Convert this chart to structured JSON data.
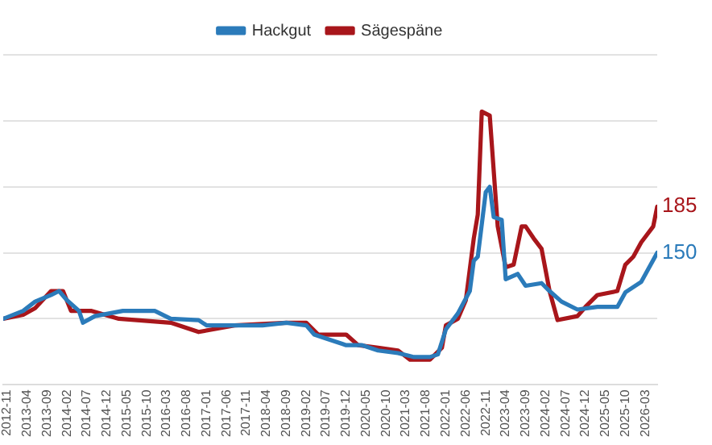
{
  "chart_data": {
    "type": "line",
    "xlim": [
      "2012-10",
      "2026-06"
    ],
    "xticks": [
      "2012-11",
      "2013-04",
      "2013-09",
      "2014-02",
      "2014-07",
      "2014-12",
      "2015-05",
      "2015-10",
      "2016-03",
      "2016-08",
      "2017-01",
      "2017-06",
      "2017-11",
      "2018-04",
      "2018-09",
      "2019-02",
      "2019-07",
      "2019-12",
      "2020-05",
      "2020-10",
      "2021-03",
      "2021-08",
      "2022-01",
      "2022-06",
      "2022-11",
      "2023-04",
      "2023-09",
      "2024-02",
      "2024-07",
      "2024-12",
      "2025-05",
      "2025-10",
      "2026-03"
    ],
    "ylim": [
      50,
      300
    ],
    "yticks": [
      {
        "value": 50,
        "label": null
      },
      {
        "value": 100,
        "label": null
      },
      {
        "value": 150,
        "label": null
      },
      {
        "value": 200,
        "label": null
      },
      {
        "value": 250,
        "label": null
      },
      {
        "value": 300,
        "label": null
      }
    ],
    "tick_labels": "x",
    "grid": "y",
    "legend": "top",
    "marker": "none",
    "line_style": "solid",
    "series": [
      {
        "name": "Hackgut",
        "color": "#2b7bba",
        "x": [
          "2012-10",
          "2013-03",
          "2013-06",
          "2013-10",
          "2013-12",
          "2014-02",
          "2014-05",
          "2014-06",
          "2014-09",
          "2015-04",
          "2015-08",
          "2015-12",
          "2016-04",
          "2016-11",
          "2017-01",
          "2017-08",
          "2018-03",
          "2018-09",
          "2019-02",
          "2019-04",
          "2019-07",
          "2019-11",
          "2019-12",
          "2020-04",
          "2020-08",
          "2021-01",
          "2021-05",
          "2021-09",
          "2021-11",
          "2022-01",
          "2022-04",
          "2022-07",
          "2022-08",
          "2022-09",
          "2022-11",
          "2022-12",
          "2023-01",
          "2023-03",
          "2023-04",
          "2023-07",
          "2023-09",
          "2024-01",
          "2024-03",
          "2024-06",
          "2024-10",
          "2025-03",
          "2025-08",
          "2025-10",
          "2026-02",
          "2026-04",
          "2026-06"
        ],
        "values": [
          100,
          106,
          113,
          118,
          121,
          114,
          106,
          97,
          102,
          106,
          106,
          106,
          100,
          99,
          95,
          95,
          95,
          97,
          95,
          88,
          85,
          81,
          80,
          80,
          76,
          74,
          71,
          71,
          73,
          92,
          104,
          121,
          144,
          147,
          196,
          200,
          177,
          175,
          130,
          134,
          125,
          127,
          121,
          113,
          107,
          109,
          109,
          120,
          128,
          139,
          150
        ],
        "value_labels": [
          null,
          null,
          null,
          null,
          null,
          null,
          null,
          null,
          null,
          null,
          null,
          null,
          null,
          null,
          null,
          null,
          null,
          null,
          null,
          null,
          null,
          null,
          null,
          null,
          null,
          null,
          null,
          null,
          null,
          null,
          null,
          null,
          null,
          null,
          null,
          null,
          null,
          null,
          null,
          null,
          null,
          null,
          null,
          null,
          null,
          null,
          null,
          null,
          null,
          null,
          "150"
        ]
      },
      {
        "name": "Sägespäne",
        "color": "#a8161b",
        "x": [
          "2012-10",
          "2013-03",
          "2013-06",
          "2013-10",
          "2014-01",
          "2014-03",
          "2014-05",
          "2014-08",
          "2015-03",
          "2016-04",
          "2016-11",
          "2017-08",
          "2018-09",
          "2019-02",
          "2019-05",
          "2019-11",
          "2019-12",
          "2020-03",
          "2020-08",
          "2021-01",
          "2021-04",
          "2021-09",
          "2021-12",
          "2022-01",
          "2022-04",
          "2022-06",
          "2022-08",
          "2022-09",
          "2022-10",
          "2022-12",
          "2023-02",
          "2023-04",
          "2023-06",
          "2023-08",
          "2023-09",
          "2023-11",
          "2024-01",
          "2024-03",
          "2024-05",
          "2024-10",
          "2024-12",
          "2025-03",
          "2025-08",
          "2025-10",
          "2025-12",
          "2026-02",
          "2026-05",
          "2026-06"
        ],
        "values": [
          100,
          103,
          108,
          121,
          121,
          106,
          106,
          106,
          100,
          97,
          90,
          95,
          97,
          97,
          88,
          88,
          88,
          80,
          78,
          76,
          69,
          69,
          78,
          95,
          100,
          114,
          161,
          179,
          257,
          254,
          170,
          139,
          141,
          170,
          170,
          161,
          153,
          121,
          99,
          102,
          109,
          118,
          121,
          141,
          147,
          158,
          170,
          185
        ],
        "value_labels": [
          null,
          null,
          null,
          null,
          null,
          null,
          null,
          null,
          null,
          null,
          null,
          null,
          null,
          null,
          null,
          null,
          null,
          null,
          null,
          null,
          null,
          null,
          null,
          null,
          null,
          null,
          null,
          null,
          null,
          null,
          null,
          null,
          null,
          null,
          null,
          null,
          null,
          null,
          null,
          null,
          null,
          null,
          null,
          null,
          null,
          null,
          null,
          "185"
        ]
      }
    ]
  }
}
